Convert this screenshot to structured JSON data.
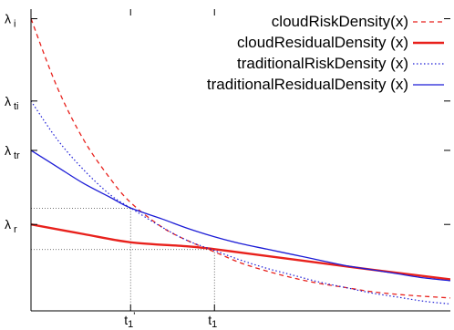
{
  "chart_data": {
    "type": "line",
    "title": "",
    "xlabel": "",
    "ylabel": "",
    "x_ticks": [
      {
        "x": 0.38,
        "label": "t",
        "sub": "1",
        "prime": "'"
      },
      {
        "x": 0.7,
        "label": "t",
        "sub": "1",
        "prime": ""
      }
    ],
    "y_ticks": [
      {
        "y": 1.0,
        "label": "λ",
        "sub": "i"
      },
      {
        "y": 0.7,
        "label": "λ",
        "sub": "ti"
      },
      {
        "y": 0.52,
        "label": "λ",
        "sub": "tr"
      },
      {
        "y": 0.25,
        "label": "λ",
        "sub": "r"
      }
    ],
    "xlim": [
      0,
      1.6
    ],
    "ylim": [
      -0.065,
      1.035
    ],
    "legend_position": "top-right",
    "guides": [
      {
        "x": 0.38,
        "y": 0.3085
      },
      {
        "x": 0.7,
        "y": 0.1585
      }
    ],
    "series": [
      {
        "name": "cloudRiskDensity(x)",
        "color": "#e8211c",
        "dash": "5,4",
        "width": 1.3,
        "x": [
          0,
          0.1,
          0.2,
          0.3,
          0.38,
          0.5,
          0.6,
          0.7,
          0.8,
          0.9,
          1.0,
          1.1,
          1.2,
          1.3,
          1.4,
          1.5,
          1.6
        ],
        "y": [
          1.0,
          0.75,
          0.56,
          0.42,
          0.33,
          0.24,
          0.19,
          0.15,
          0.11,
          0.08,
          0.055,
          0.035,
          0.02,
          0.005,
          -0.005,
          -0.012,
          -0.018
        ]
      },
      {
        "name": "cloudResidualDensity (x)",
        "color": "#e8211c",
        "dash": "",
        "width": 2.4,
        "x": [
          0,
          0.2,
          0.38,
          0.6,
          0.7,
          0.9,
          1.1,
          1.3,
          1.6
        ],
        "y": [
          0.25,
          0.215,
          0.185,
          0.17,
          0.16,
          0.135,
          0.11,
          0.085,
          0.05
        ]
      },
      {
        "name": "traditionalRiskDensity (x)",
        "color": "#1c1cd6",
        "dash": "1.5,2.5",
        "width": 1.2,
        "x": [
          0,
          0.1,
          0.2,
          0.3,
          0.38,
          0.5,
          0.6,
          0.7,
          0.8,
          0.9,
          1.0,
          1.1,
          1.2,
          1.3,
          1.4,
          1.5,
          1.6
        ],
        "y": [
          0.7,
          0.56,
          0.45,
          0.36,
          0.31,
          0.24,
          0.19,
          0.155,
          0.12,
          0.09,
          0.065,
          0.04,
          0.02,
          0.0,
          -0.015,
          -0.03,
          -0.04
        ]
      },
      {
        "name": "traditionalResidualDensity (x)",
        "color": "#1c1cd6",
        "dash": "",
        "width": 1.3,
        "x": [
          0,
          0.1,
          0.2,
          0.3,
          0.38,
          0.5,
          0.6,
          0.7,
          0.8,
          0.9,
          1.0,
          1.1,
          1.2,
          1.3,
          1.4,
          1.5,
          1.6
        ],
        "y": [
          0.52,
          0.46,
          0.4,
          0.35,
          0.31,
          0.27,
          0.235,
          0.205,
          0.18,
          0.16,
          0.14,
          0.12,
          0.1,
          0.085,
          0.07,
          0.055,
          0.045
        ]
      }
    ]
  }
}
